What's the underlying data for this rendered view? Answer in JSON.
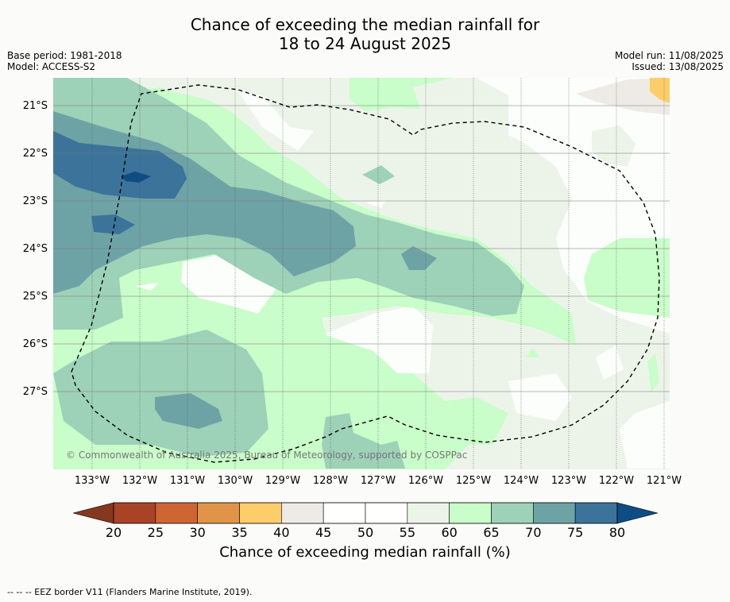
{
  "title_line1": "Chance of exceeding the median rainfall for",
  "title_line2": "18 to 24 August 2025",
  "base_period": "Base period: 1981-2018",
  "model": "Model: ACCESS-S2",
  "model_run": "Model run: 11/08/2025",
  "issued": "Issued: 13/08/2025",
  "copyright": "© Commonwealth of Australia 2025, Bureau of Meteorology, supported by COSPPac",
  "footnote": "--  --  -- EEZ border V11 (Flanders Marine Institute, 2019).",
  "map": {
    "lat_labels": [
      "21°S",
      "22°S",
      "23°S",
      "24°S",
      "25°S",
      "26°S",
      "27°S"
    ],
    "lon_labels": [
      "133°W",
      "132°W",
      "131°W",
      "130°W",
      "129°W",
      "128°W",
      "127°W",
      "126°W",
      "125°W",
      "124°W",
      "123°W",
      "122°W",
      "121°W"
    ],
    "lon_range": [
      -133.8,
      -120.9
    ],
    "lat_range": [
      -28.6,
      -20.4
    ]
  },
  "colorbar": {
    "ticks": [
      "20",
      "25",
      "30",
      "35",
      "40",
      "45",
      "50",
      "55",
      "60",
      "65",
      "70",
      "75",
      "80"
    ],
    "label": "Chance of exceeding median rainfall (%)",
    "colors": [
      "#a94326",
      "#cf6532",
      "#e09448",
      "#fdcd6a",
      "#eeebe7",
      "#ffffff",
      "#ffffff",
      "#ecf4ea",
      "#c9fdc9",
      "#9dd1b8",
      "#6ea3a6",
      "#3b739a"
    ],
    "under_color": "#84381f",
    "over_color": "#0e4c84"
  },
  "colors": {
    "c40_45": "#eeebe7",
    "c45_55": "#fcfefb",
    "c55_60": "#ecf4ea",
    "c60_65": "#c9fdc9",
    "c65_70": "#9dd1b8",
    "c70_75": "#6ea3a6",
    "c75_80": "#3b739a",
    "c80_plus": "#0e4c84",
    "c35_40": "#fdcd6a"
  }
}
